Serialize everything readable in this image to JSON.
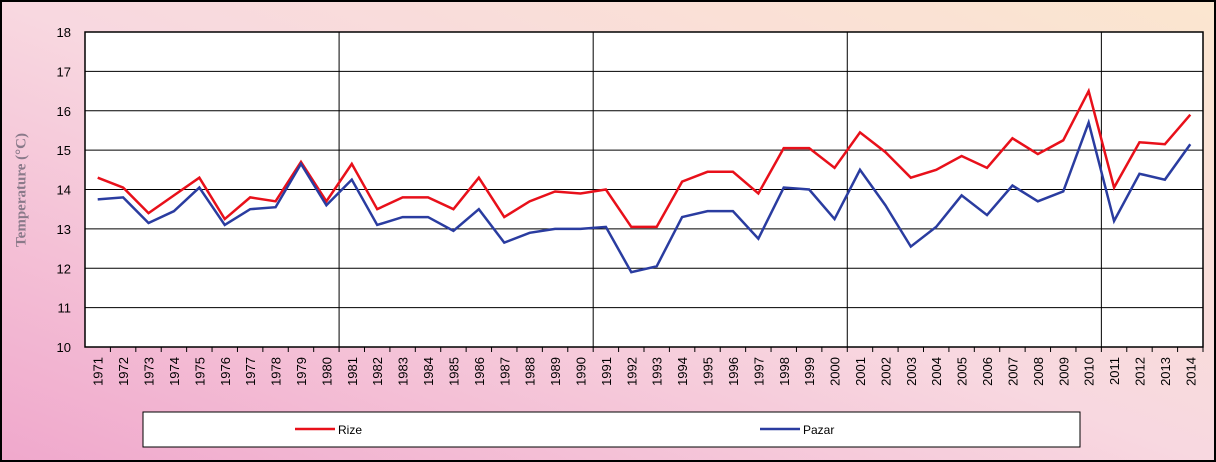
{
  "chart_data": {
    "type": "line",
    "y_label": "Temperature (°C)",
    "categories": [
      "1971",
      "1972",
      "1973",
      "1974",
      "1975",
      "1976",
      "1977",
      "1978",
      "1979",
      "1980",
      "1981",
      "1982",
      "1983",
      "1984",
      "1985",
      "1986",
      "1987",
      "1988",
      "1989",
      "1990",
      "1991",
      "1992",
      "1993",
      "1994",
      "1995",
      "1996",
      "1997",
      "1998",
      "1999",
      "2000",
      "2001",
      "2002",
      "2003",
      "2004",
      "2005",
      "2006",
      "2007",
      "2008",
      "2009",
      "2010",
      "2011",
      "2012",
      "2013",
      "2014"
    ],
    "series": [
      {
        "name": "Rize",
        "color": "#e8101a",
        "values": [
          14.3,
          14.05,
          13.4,
          13.85,
          14.3,
          13.25,
          13.8,
          13.7,
          14.7,
          13.7,
          14.65,
          13.5,
          13.8,
          13.8,
          13.5,
          14.3,
          13.3,
          13.7,
          13.95,
          13.9,
          14.0,
          13.05,
          13.05,
          14.2,
          14.45,
          14.45,
          13.9,
          15.05,
          15.05,
          14.55,
          15.45,
          14.95,
          14.3,
          14.5,
          14.85,
          14.55,
          15.3,
          14.9,
          15.25,
          16.5,
          14.05,
          15.2,
          15.15,
          15.9
        ]
      },
      {
        "name": "Pazar",
        "color": "#2a3ca0",
        "values": [
          13.75,
          13.8,
          13.15,
          13.45,
          14.05,
          13.1,
          13.5,
          13.55,
          14.65,
          13.6,
          14.25,
          13.1,
          13.3,
          13.3,
          12.95,
          13.5,
          12.65,
          12.9,
          13.0,
          13.0,
          13.05,
          11.9,
          12.05,
          13.3,
          13.45,
          13.45,
          12.75,
          14.05,
          14.0,
          13.25,
          14.5,
          13.6,
          12.55,
          13.05,
          13.85,
          13.35,
          14.1,
          13.7,
          13.95,
          15.7,
          13.2,
          14.4,
          14.25,
          15.15
        ]
      }
    ],
    "ylim": [
      10,
      18
    ],
    "yticks": [
      10,
      11,
      12,
      13,
      14,
      15,
      16,
      17,
      18
    ],
    "grid": true,
    "legend": "bottom"
  }
}
